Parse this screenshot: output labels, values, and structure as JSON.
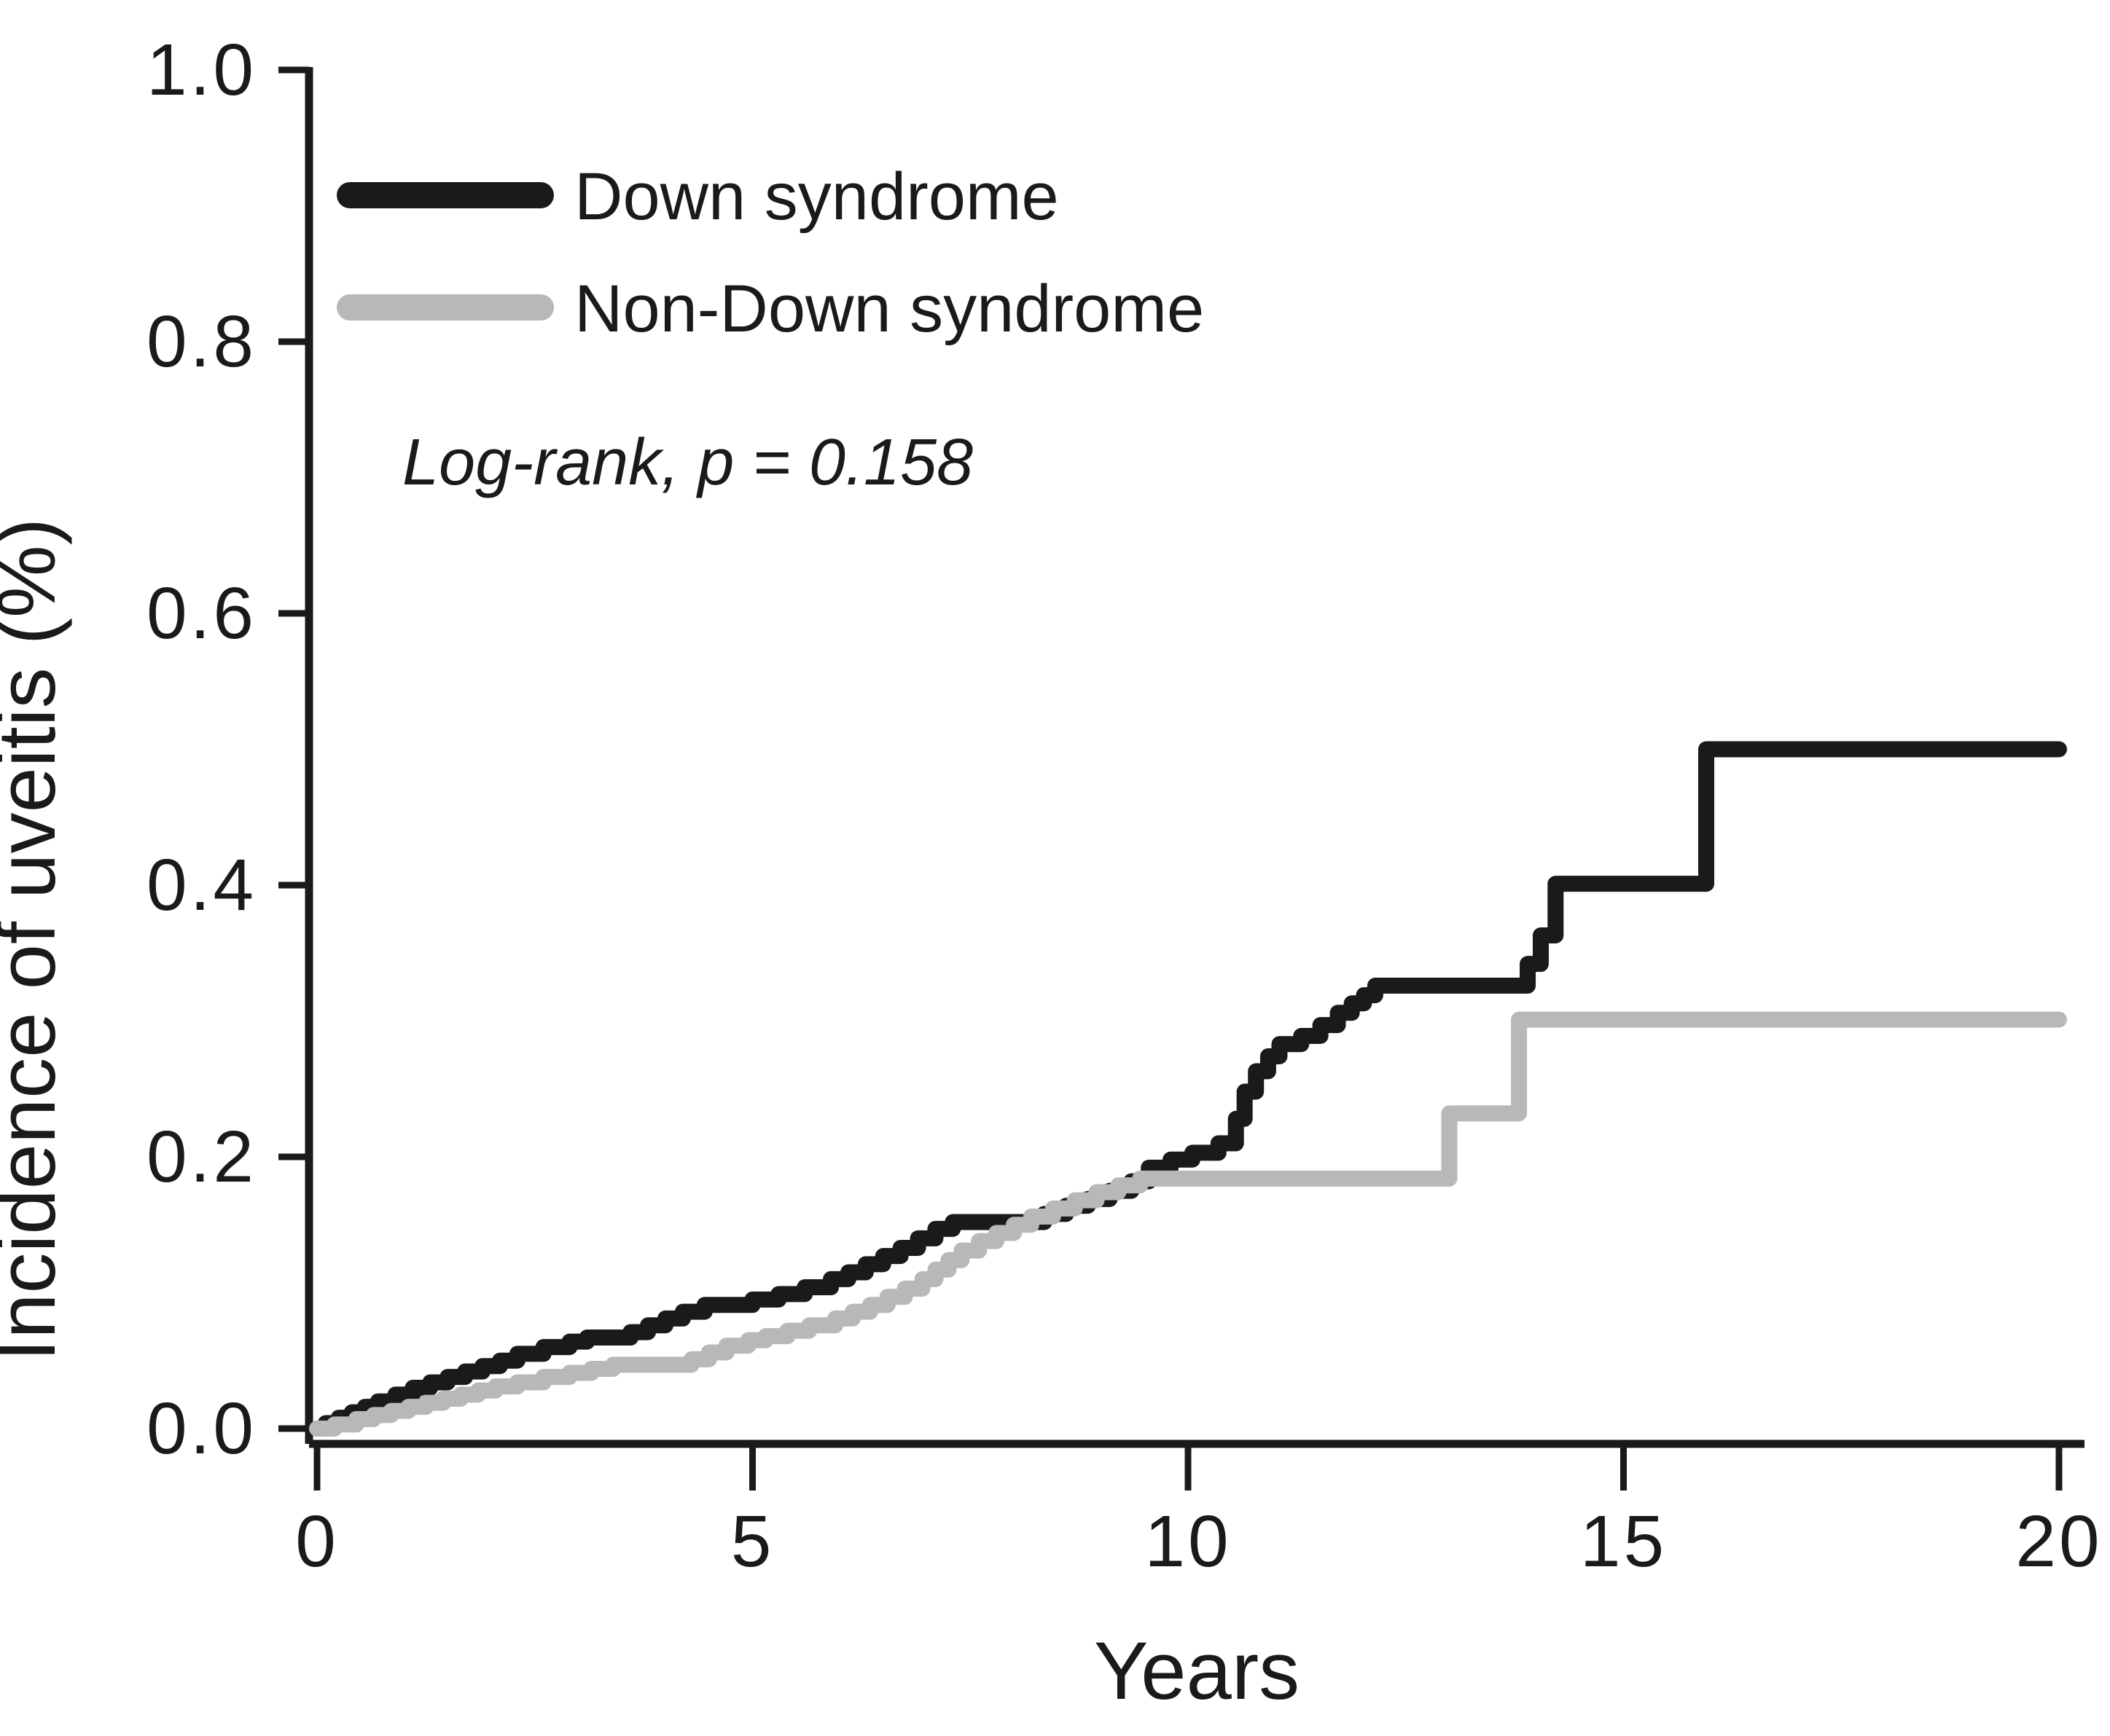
{
  "chart_data": {
    "type": "line",
    "subtype": "step-after-kaplan-meier-cumulative-incidence",
    "title": "",
    "xlabel": "Years",
    "ylabel": "Incidence of uveitis (%)",
    "xlim": [
      0,
      20
    ],
    "ylim": [
      0.0,
      1.0
    ],
    "grid": false,
    "legend_position": "top-left-inside",
    "annotation": "Log-rank, p = 0.158",
    "x_ticks": [
      {
        "label": "0",
        "value": 0
      },
      {
        "label": "5",
        "value": 5
      },
      {
        "label": "10",
        "value": 10
      },
      {
        "label": "15",
        "value": 15
      },
      {
        "label": "20",
        "value": 20
      }
    ],
    "y_ticks": [
      {
        "label": "0.0",
        "value": 0.0
      },
      {
        "label": "0.2",
        "value": 0.2
      },
      {
        "label": "0.4",
        "value": 0.4
      },
      {
        "label": "0.6",
        "value": 0.6
      },
      {
        "label": "0.8",
        "value": 0.8
      },
      {
        "label": "1.0",
        "value": 1.0
      }
    ],
    "series": [
      {
        "name": "Down syndrome",
        "color": "#1a1a1a",
        "points": [
          [
            0,
            0
          ],
          [
            0.1,
            0.004
          ],
          [
            0.25,
            0.008
          ],
          [
            0.4,
            0.012
          ],
          [
            0.55,
            0.016
          ],
          [
            0.7,
            0.02
          ],
          [
            0.9,
            0.025
          ],
          [
            1.1,
            0.03
          ],
          [
            1.3,
            0.034
          ],
          [
            1.5,
            0.038
          ],
          [
            1.7,
            0.042
          ],
          [
            1.9,
            0.046
          ],
          [
            2.1,
            0.05
          ],
          [
            2.3,
            0.055
          ],
          [
            2.6,
            0.06
          ],
          [
            2.9,
            0.064
          ],
          [
            3.1,
            0.067
          ],
          [
            3.6,
            0.071
          ],
          [
            3.8,
            0.076
          ],
          [
            4.0,
            0.081
          ],
          [
            4.2,
            0.086
          ],
          [
            4.45,
            0.091
          ],
          [
            5.0,
            0.095
          ],
          [
            5.3,
            0.099
          ],
          [
            5.6,
            0.104
          ],
          [
            5.9,
            0.11
          ],
          [
            6.1,
            0.115
          ],
          [
            6.3,
            0.121
          ],
          [
            6.5,
            0.127
          ],
          [
            6.7,
            0.133
          ],
          [
            6.9,
            0.14
          ],
          [
            7.1,
            0.147
          ],
          [
            7.3,
            0.152
          ],
          [
            8.35,
            0.158
          ],
          [
            8.6,
            0.164
          ],
          [
            8.85,
            0.169
          ],
          [
            9.1,
            0.175
          ],
          [
            9.35,
            0.182
          ],
          [
            9.55,
            0.192
          ],
          [
            9.8,
            0.198
          ],
          [
            10.05,
            0.203
          ],
          [
            10.35,
            0.21
          ],
          [
            10.55,
            0.228
          ],
          [
            10.65,
            0.248
          ],
          [
            10.78,
            0.263
          ],
          [
            10.92,
            0.274
          ],
          [
            11.05,
            0.283
          ],
          [
            11.3,
            0.289
          ],
          [
            11.52,
            0.297
          ],
          [
            11.72,
            0.306
          ],
          [
            11.88,
            0.313
          ],
          [
            12.02,
            0.319
          ],
          [
            12.15,
            0.326
          ],
          [
            13.9,
            0.342
          ],
          [
            14.05,
            0.363
          ],
          [
            14.22,
            0.401
          ],
          [
            15.95,
            0.5
          ],
          [
            20,
            0.5
          ]
        ]
      },
      {
        "name": "Non-Down syndrome",
        "color": "#b8b8b8",
        "points": [
          [
            0,
            0
          ],
          [
            0.2,
            0.003
          ],
          [
            0.45,
            0.007
          ],
          [
            0.65,
            0.01
          ],
          [
            0.85,
            0.013
          ],
          [
            1.05,
            0.016
          ],
          [
            1.25,
            0.019
          ],
          [
            1.45,
            0.022
          ],
          [
            1.65,
            0.025
          ],
          [
            1.85,
            0.028
          ],
          [
            2.05,
            0.031
          ],
          [
            2.3,
            0.034
          ],
          [
            2.6,
            0.038
          ],
          [
            2.9,
            0.041
          ],
          [
            3.15,
            0.044
          ],
          [
            3.4,
            0.047
          ],
          [
            4.3,
            0.051
          ],
          [
            4.5,
            0.056
          ],
          [
            4.7,
            0.061
          ],
          [
            4.95,
            0.065
          ],
          [
            5.15,
            0.068
          ],
          [
            5.4,
            0.072
          ],
          [
            5.65,
            0.076
          ],
          [
            5.95,
            0.081
          ],
          [
            6.15,
            0.086
          ],
          [
            6.35,
            0.091
          ],
          [
            6.55,
            0.097
          ],
          [
            6.75,
            0.103
          ],
          [
            6.95,
            0.11
          ],
          [
            7.1,
            0.117
          ],
          [
            7.25,
            0.124
          ],
          [
            7.4,
            0.131
          ],
          [
            7.6,
            0.138
          ],
          [
            7.8,
            0.144
          ],
          [
            8.0,
            0.15
          ],
          [
            8.2,
            0.156
          ],
          [
            8.45,
            0.162
          ],
          [
            8.7,
            0.168
          ],
          [
            8.95,
            0.174
          ],
          [
            9.2,
            0.179
          ],
          [
            9.45,
            0.184
          ],
          [
            13.0,
            0.232
          ],
          [
            13.8,
            0.301
          ],
          [
            20,
            0.301
          ]
        ]
      }
    ]
  }
}
